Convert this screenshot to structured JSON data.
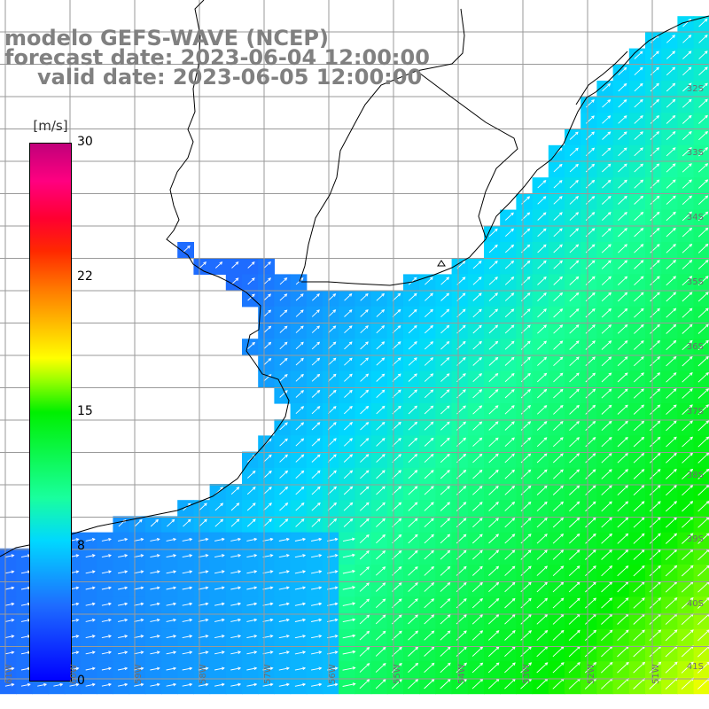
{
  "title": {
    "line1": "modelo GEFS-WAVE (NCEP)",
    "line2": "forecast date: 2023-06-04 12:00:00",
    "line3": "valid date: 2023-06-05 12:00:00"
  },
  "colorbar": {
    "units": "[m/s]",
    "ticks": [
      {
        "label": "30",
        "value": 30
      },
      {
        "label": "22",
        "value": 22
      },
      {
        "label": "15",
        "value": 15
      },
      {
        "label": "8",
        "value": 8
      },
      {
        "label": "0",
        "value": 0
      }
    ],
    "min": 0,
    "max": 30
  },
  "map": {
    "lat_labels": [
      "32S",
      "33S",
      "34S",
      "35S",
      "36S",
      "37S",
      "38S",
      "39S",
      "40S",
      "41S"
    ],
    "lon_labels": [
      "61W",
      "60W",
      "59W",
      "58W",
      "57W",
      "56W",
      "55W",
      "54W",
      "53W",
      "52W",
      "51W"
    ],
    "colors": {
      "land": "#ffffff",
      "coast": "#000000",
      "grid": "#9a9a9a",
      "arrow": "#ffffff"
    }
  }
}
